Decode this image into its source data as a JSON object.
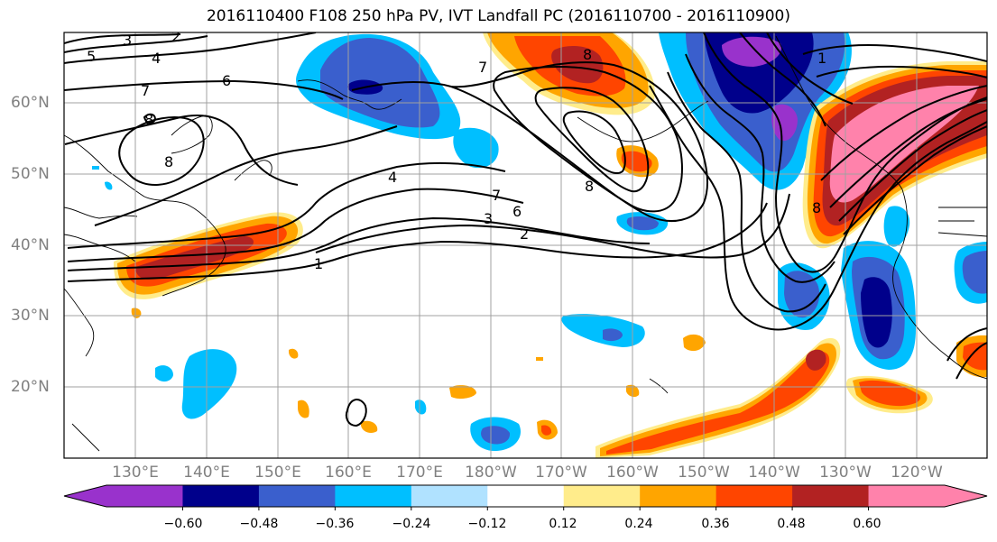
{
  "title": "2016110400 F108 250 hPa PV, IVT Landfall PC (2016110700 - 2016110900)",
  "lat_labels": [
    "60°N",
    "50°N",
    "40°N",
    "30°N",
    "20°N"
  ],
  "lon_labels": [
    "130°E",
    "140°E",
    "150°E",
    "160°E",
    "170°E",
    "180°W",
    "170°W",
    "160°W",
    "150°W",
    "140°W",
    "130°W",
    "120°W"
  ],
  "colorbar": {
    "colors": [
      "#9932cc",
      "#00008b",
      "#3a5fcd",
      "#00bfff",
      "#b0e2ff",
      "#ffffff",
      "#ffec8b",
      "#ffa500",
      "#ff4500",
      "#b22222",
      "#ff82ab"
    ],
    "tick_labels": [
      "−0.60",
      "−0.48",
      "−0.36",
      "−0.24",
      "−0.12",
      "0.12",
      "0.24",
      "0.36",
      "0.48",
      "0.60"
    ]
  },
  "contour_labels": [
    "3",
    "2",
    "5",
    "4",
    "7",
    "6",
    "8",
    "8",
    "7",
    "8",
    "4",
    "7",
    "6",
    "3",
    "2",
    "8",
    "1",
    "8",
    "1"
  ]
}
